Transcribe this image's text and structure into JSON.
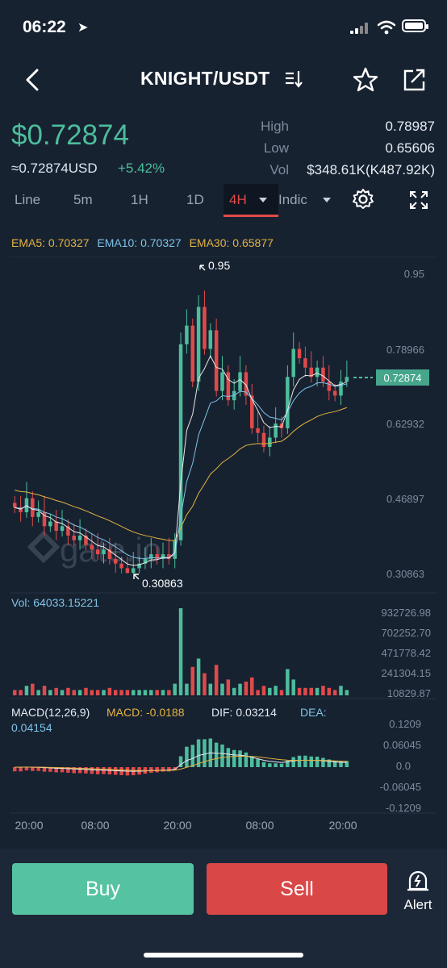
{
  "status_bar": {
    "time": "06:22",
    "location_icon": "location-arrow-icon",
    "signal_icon": "cellular-signal-icon",
    "wifi_icon": "wifi-icon",
    "battery_icon": "battery-icon"
  },
  "header": {
    "pair": "KNIGHT/USDT",
    "pair_switch_icon": "pair-switch-icon",
    "favorite_icon": "star-icon",
    "share_icon": "share-icon"
  },
  "ticker": {
    "price": "$0.72874",
    "usd_value": "≈0.72874USD",
    "change": "+5.42%",
    "high_label": "High",
    "high_value": "0.78987",
    "low_label": "Low",
    "low_value": "0.65606",
    "vol_label": "Vol",
    "vol_value": "$348.61K(K487.92K)"
  },
  "tabs": {
    "items": [
      "Line",
      "5m",
      "1H",
      "1D",
      "4H",
      "Indic"
    ],
    "active": "4H"
  },
  "indicators": {
    "ema5": "EMA5: 0.70327",
    "ema10": "EMA10: 0.70327",
    "ema30": "EMA30: 0.65877"
  },
  "colors": {
    "up": "#4dbd9c",
    "down": "#e04a4a",
    "ema5": "#e9e9e9",
    "ema10": "#7fc3e8",
    "ema30": "#e3b341",
    "background": "#172231"
  },
  "chart_data": {
    "type": "candlestick",
    "price_axis_ticks": [
      "0.95",
      "0.78966",
      "0.62932",
      "0.46897",
      "0.30863"
    ],
    "current_price_label": "0.72874",
    "max_label": "0.95",
    "min_label": "0.30863",
    "watermark": "gate.io",
    "x_tick_labels": [
      "20:00",
      "08:00",
      "20:00",
      "08:00",
      "20:00"
    ],
    "volume_label": "Vol: 64033.15221",
    "volume_axis_ticks": [
      "932726.98",
      "702252.70",
      "471778.42",
      "241304.15",
      "10829.87"
    ],
    "macd_label": "MACD(12,26,9)",
    "macd_value": "MACD: -0.0188",
    "dif_value": "DIF: 0.03214",
    "dea_value": "DEA: 0.04154",
    "macd_axis_ticks": [
      "0.1209",
      "0.06045",
      "0.0",
      "-0.06045",
      "-0.1209"
    ],
    "candles_close": [
      0.45,
      0.44,
      0.47,
      0.43,
      0.44,
      0.41,
      0.42,
      0.4,
      0.41,
      0.39,
      0.38,
      0.39,
      0.37,
      0.36,
      0.35,
      0.36,
      0.34,
      0.33,
      0.32,
      0.31,
      0.32,
      0.33,
      0.34,
      0.35,
      0.34,
      0.35,
      0.34,
      0.38,
      0.8,
      0.84,
      0.72,
      0.88,
      0.79,
      0.83,
      0.7,
      0.74,
      0.68,
      0.7,
      0.74,
      0.69,
      0.62,
      0.61,
      0.58,
      0.6,
      0.63,
      0.62,
      0.73,
      0.79,
      0.77,
      0.75,
      0.73,
      0.75,
      0.72,
      0.7,
      0.69,
      0.72,
      0.73
    ]
  },
  "actions": {
    "buy": "Buy",
    "sell": "Sell",
    "alert": "Alert"
  }
}
